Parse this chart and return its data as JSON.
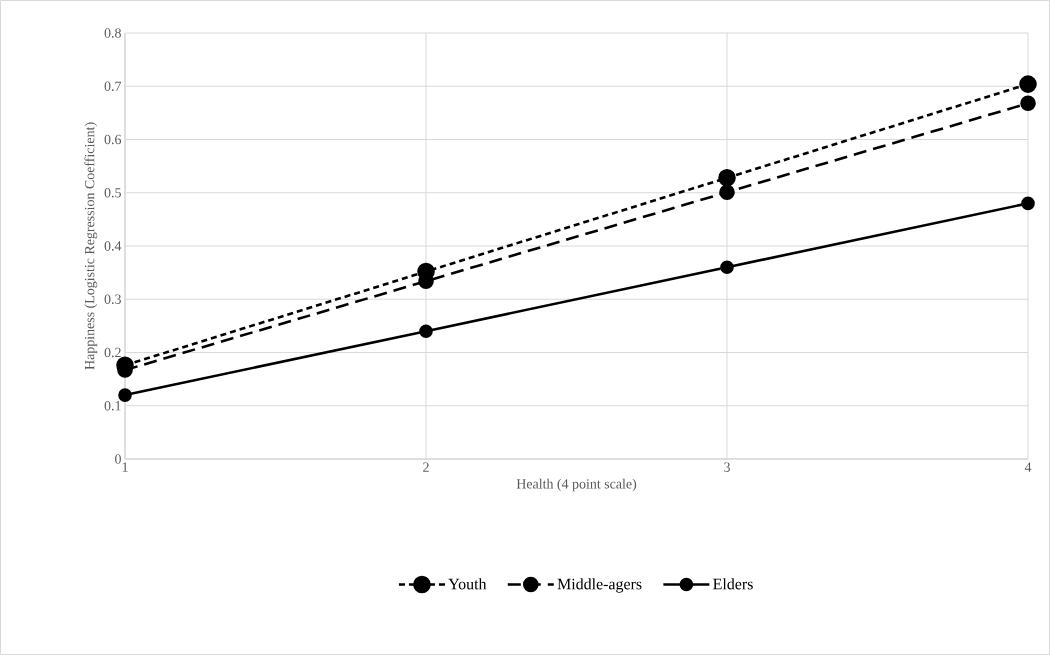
{
  "chart_data": {
    "type": "line",
    "xlabel": "Health (4 point scale)",
    "ylabel": "Happiness (Logistic Regression Coefficient)",
    "x": [
      1,
      2,
      3,
      4
    ],
    "xlim": [
      1,
      4
    ],
    "xticks": [
      1,
      2,
      3,
      4
    ],
    "ylim": [
      0,
      0.8
    ],
    "yticks": [
      0,
      0.1,
      0.2,
      0.3,
      0.4,
      0.5,
      0.6,
      0.7,
      0.8
    ],
    "grid": true,
    "legend": "bottom",
    "marker": "circle",
    "series": [
      {
        "name": "Youth",
        "color": "#000000",
        "line_style": "dotted",
        "values": [
          0.176,
          0.352,
          0.528,
          0.704
        ]
      },
      {
        "name": "Middle-agers",
        "color": "#000000",
        "line_style": "dashed",
        "values": [
          0.167,
          0.334,
          0.501,
          0.668
        ]
      },
      {
        "name": "Elders",
        "color": "#000000",
        "line_style": "solid",
        "values": [
          0.12,
          0.24,
          0.36,
          0.48
        ]
      }
    ]
  }
}
